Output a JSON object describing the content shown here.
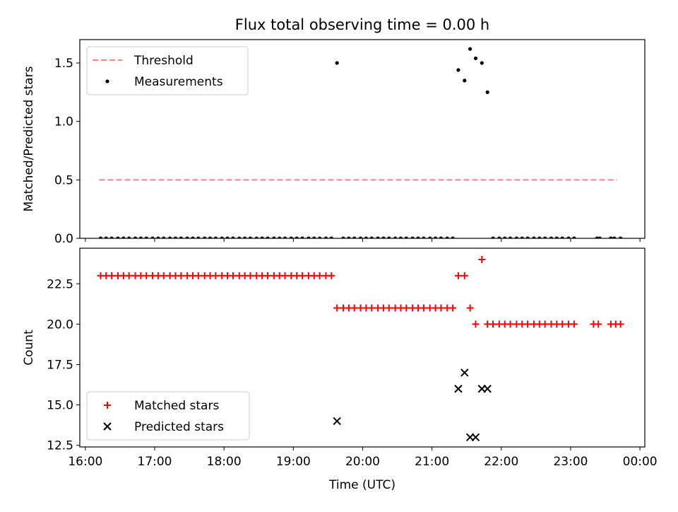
{
  "chart_data": [
    {
      "type": "scatter",
      "title": "Flux total observing time = 0.00 h",
      "xlabel": "",
      "ylabel": "Matched/Predicted stars",
      "ylim": [
        0,
        1.7
      ],
      "yticks": [
        0.0,
        0.5,
        1.0,
        1.5
      ],
      "ytick_labels": [
        "0.0",
        "0.5",
        "1.0",
        "1.5"
      ],
      "x_unit": "hours (UTC)",
      "xlim": [
        15.92,
        24.07
      ],
      "legend": {
        "placement": "upper-left"
      },
      "series": [
        {
          "name": "Threshold",
          "kind": "dashed-line",
          "color": "#ff8080",
          "x": [
            16.2,
            23.67
          ],
          "y": [
            0.5,
            0.5
          ]
        },
        {
          "name": "Measurements",
          "kind": "points",
          "color": "#000000",
          "points": [
            [
              16.22,
              0
            ],
            [
              16.3,
              0
            ],
            [
              16.38,
              0
            ],
            [
              16.47,
              0
            ],
            [
              16.55,
              0
            ],
            [
              16.63,
              0
            ],
            [
              16.72,
              0
            ],
            [
              16.8,
              0
            ],
            [
              16.88,
              0
            ],
            [
              16.97,
              0
            ],
            [
              17.05,
              0
            ],
            [
              17.13,
              0
            ],
            [
              17.22,
              0
            ],
            [
              17.3,
              0
            ],
            [
              17.38,
              0
            ],
            [
              17.47,
              0
            ],
            [
              17.55,
              0
            ],
            [
              17.63,
              0
            ],
            [
              17.72,
              0
            ],
            [
              17.8,
              0
            ],
            [
              17.88,
              0
            ],
            [
              17.97,
              0
            ],
            [
              18.05,
              0
            ],
            [
              18.13,
              0
            ],
            [
              18.22,
              0
            ],
            [
              18.3,
              0
            ],
            [
              18.38,
              0
            ],
            [
              18.47,
              0
            ],
            [
              18.55,
              0
            ],
            [
              18.63,
              0
            ],
            [
              18.72,
              0
            ],
            [
              18.8,
              0
            ],
            [
              18.88,
              0
            ],
            [
              18.97,
              0
            ],
            [
              19.05,
              0
            ],
            [
              19.13,
              0
            ],
            [
              19.22,
              0
            ],
            [
              19.3,
              0
            ],
            [
              19.38,
              0
            ],
            [
              19.47,
              0
            ],
            [
              19.55,
              0
            ],
            [
              19.63,
              1.5
            ],
            [
              19.72,
              0
            ],
            [
              19.8,
              0
            ],
            [
              19.88,
              0
            ],
            [
              19.97,
              0
            ],
            [
              20.05,
              0
            ],
            [
              20.13,
              0
            ],
            [
              20.22,
              0
            ],
            [
              20.3,
              0
            ],
            [
              20.38,
              0
            ],
            [
              20.47,
              0
            ],
            [
              20.55,
              0
            ],
            [
              20.63,
              0
            ],
            [
              20.72,
              0
            ],
            [
              20.8,
              0
            ],
            [
              20.88,
              0
            ],
            [
              20.97,
              0
            ],
            [
              21.05,
              0
            ],
            [
              21.13,
              0
            ],
            [
              21.22,
              0
            ],
            [
              21.3,
              0
            ],
            [
              21.38,
              1.44
            ],
            [
              21.47,
              1.35
            ],
            [
              21.55,
              1.62
            ],
            [
              21.63,
              1.54
            ],
            [
              21.72,
              1.5
            ],
            [
              21.8,
              1.25
            ],
            [
              21.88,
              0
            ],
            [
              21.97,
              0
            ],
            [
              22.05,
              0
            ],
            [
              22.13,
              0
            ],
            [
              22.22,
              0
            ],
            [
              22.3,
              0
            ],
            [
              22.38,
              0
            ],
            [
              22.47,
              0
            ],
            [
              22.55,
              0
            ],
            [
              22.63,
              0
            ],
            [
              22.72,
              0
            ],
            [
              22.8,
              0
            ],
            [
              22.88,
              0
            ],
            [
              22.97,
              0
            ],
            [
              23.05,
              0
            ],
            [
              23.38,
              0
            ],
            [
              23.42,
              0
            ],
            [
              23.58,
              0
            ],
            [
              23.63,
              0
            ],
            [
              23.72,
              0
            ]
          ]
        }
      ]
    },
    {
      "type": "scatter",
      "title": "",
      "xlabel": "Time (UTC)",
      "ylabel": "Count",
      "ylim": [
        12.4,
        24.7
      ],
      "yticks": [
        12.5,
        15.0,
        17.5,
        20.0,
        22.5
      ],
      "ytick_labels": [
        "12.5",
        "15.0",
        "17.5",
        "20.0",
        "22.5"
      ],
      "x_unit": "hours (UTC)",
      "xlim": [
        15.92,
        24.07
      ],
      "xticks": [
        16,
        17,
        18,
        19,
        20,
        21,
        22,
        23,
        24
      ],
      "xtick_labels": [
        "16:00",
        "17:00",
        "18:00",
        "19:00",
        "20:00",
        "21:00",
        "22:00",
        "23:00",
        "00:00"
      ],
      "legend": {
        "placement": "lower-left"
      },
      "series": [
        {
          "name": "Matched stars",
          "kind": "plus",
          "color": "#ff0000",
          "points": [
            [
              16.22,
              23
            ],
            [
              16.3,
              23
            ],
            [
              16.38,
              23
            ],
            [
              16.47,
              23
            ],
            [
              16.55,
              23
            ],
            [
              16.63,
              23
            ],
            [
              16.72,
              23
            ],
            [
              16.8,
              23
            ],
            [
              16.88,
              23
            ],
            [
              16.97,
              23
            ],
            [
              17.05,
              23
            ],
            [
              17.13,
              23
            ],
            [
              17.22,
              23
            ],
            [
              17.3,
              23
            ],
            [
              17.38,
              23
            ],
            [
              17.47,
              23
            ],
            [
              17.55,
              23
            ],
            [
              17.63,
              23
            ],
            [
              17.72,
              23
            ],
            [
              17.8,
              23
            ],
            [
              17.88,
              23
            ],
            [
              17.97,
              23
            ],
            [
              18.05,
              23
            ],
            [
              18.13,
              23
            ],
            [
              18.22,
              23
            ],
            [
              18.3,
              23
            ],
            [
              18.38,
              23
            ],
            [
              18.47,
              23
            ],
            [
              18.55,
              23
            ],
            [
              18.63,
              23
            ],
            [
              18.72,
              23
            ],
            [
              18.8,
              23
            ],
            [
              18.88,
              23
            ],
            [
              18.97,
              23
            ],
            [
              19.05,
              23
            ],
            [
              19.13,
              23
            ],
            [
              19.22,
              23
            ],
            [
              19.3,
              23
            ],
            [
              19.38,
              23
            ],
            [
              19.47,
              23
            ],
            [
              19.55,
              23
            ],
            [
              19.63,
              21
            ],
            [
              19.72,
              21
            ],
            [
              19.8,
              21
            ],
            [
              19.88,
              21
            ],
            [
              19.97,
              21
            ],
            [
              20.05,
              21
            ],
            [
              20.13,
              21
            ],
            [
              20.22,
              21
            ],
            [
              20.3,
              21
            ],
            [
              20.38,
              21
            ],
            [
              20.47,
              21
            ],
            [
              20.55,
              21
            ],
            [
              20.63,
              21
            ],
            [
              20.72,
              21
            ],
            [
              20.8,
              21
            ],
            [
              20.88,
              21
            ],
            [
              20.97,
              21
            ],
            [
              21.05,
              21
            ],
            [
              21.13,
              21
            ],
            [
              21.22,
              21
            ],
            [
              21.3,
              21
            ],
            [
              21.38,
              23
            ],
            [
              21.47,
              23
            ],
            [
              21.55,
              21
            ],
            [
              21.63,
              20
            ],
            [
              21.72,
              24
            ],
            [
              21.8,
              20
            ],
            [
              21.88,
              20
            ],
            [
              21.97,
              20
            ],
            [
              22.05,
              20
            ],
            [
              22.13,
              20
            ],
            [
              22.22,
              20
            ],
            [
              22.3,
              20
            ],
            [
              22.38,
              20
            ],
            [
              22.47,
              20
            ],
            [
              22.55,
              20
            ],
            [
              22.63,
              20
            ],
            [
              22.72,
              20
            ],
            [
              22.8,
              20
            ],
            [
              22.88,
              20
            ],
            [
              22.97,
              20
            ],
            [
              23.05,
              20
            ],
            [
              23.33,
              20
            ],
            [
              23.4,
              20
            ],
            [
              23.58,
              20
            ],
            [
              23.65,
              20
            ],
            [
              23.72,
              20
            ]
          ]
        },
        {
          "name": "Predicted stars",
          "kind": "x",
          "color": "#000000",
          "points": [
            [
              19.63,
              14
            ],
            [
              21.38,
              16
            ],
            [
              21.47,
              17
            ],
            [
              21.55,
              13
            ],
            [
              21.63,
              13
            ],
            [
              21.72,
              16
            ],
            [
              21.8,
              16
            ]
          ]
        }
      ]
    }
  ]
}
